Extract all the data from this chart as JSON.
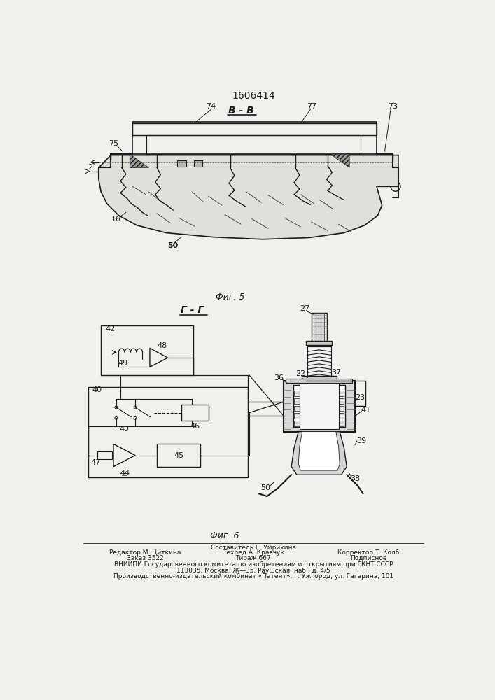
{
  "patent_number": "1606414",
  "fig5_label": "Фиг. 5",
  "fig6_label": "Фиг. 6",
  "section_BB": "В - В",
  "section_GG": "Г - Г",
  "bg_color": "#f0f0ec",
  "line_color": "#1a1a1a",
  "footer_line0_center": "Составитель Е. Умрихина",
  "footer_line1_left": "Редактор М. Циткина",
  "footer_line2_left": "Заказ 3522",
  "footer_line1_center": "Техред А. Кравчук",
  "footer_line2_center": "Тираж 667",
  "footer_line1_right": "Корректор Т. Колб",
  "footer_line2_right": "Подписное",
  "footer_vniiipi": "ВНИИПИ Государсвенного комитета по изобретениям и открытиям при ГКНТ СССР",
  "footer_address": "113035, Москва, Ж—35, Раушская  наб., д. 4/5",
  "footer_publisher": "Производственно-издательский комбинат «Патент», г. Ужгород, ул. Гагарина, 101"
}
